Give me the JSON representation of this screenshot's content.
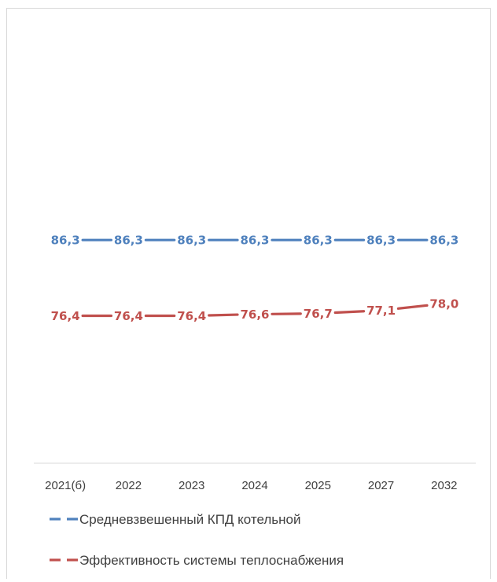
{
  "chart_data": {
    "type": "line",
    "categories": [
      "2021(б)",
      "2022",
      "2023",
      "2024",
      "2025",
      "2027",
      "2032"
    ],
    "series": [
      {
        "name": "Средневзвешенный КПД котельной",
        "values": [
          86.3,
          86.3,
          86.3,
          86.3,
          86.3,
          86.3,
          86.3
        ],
        "labels": [
          "86,3",
          "86,3",
          "86,3",
          "86,3",
          "86,3",
          "86,3",
          "86,3"
        ],
        "color": "#4f81bd"
      },
      {
        "name": "Эффективность системы теплоснабжения",
        "values": [
          76.4,
          76.4,
          76.4,
          76.6,
          76.7,
          77.1,
          78.0
        ],
        "labels": [
          "76,4",
          "76,4",
          "76,4",
          "76,6",
          "76,7",
          "77,1",
          "78,0"
        ],
        "color": "#c0504d"
      }
    ],
    "title": "",
    "xlabel": "",
    "ylabel": "",
    "ylim": [
      70,
      88
    ],
    "grid": false,
    "legend_position": "bottom"
  }
}
